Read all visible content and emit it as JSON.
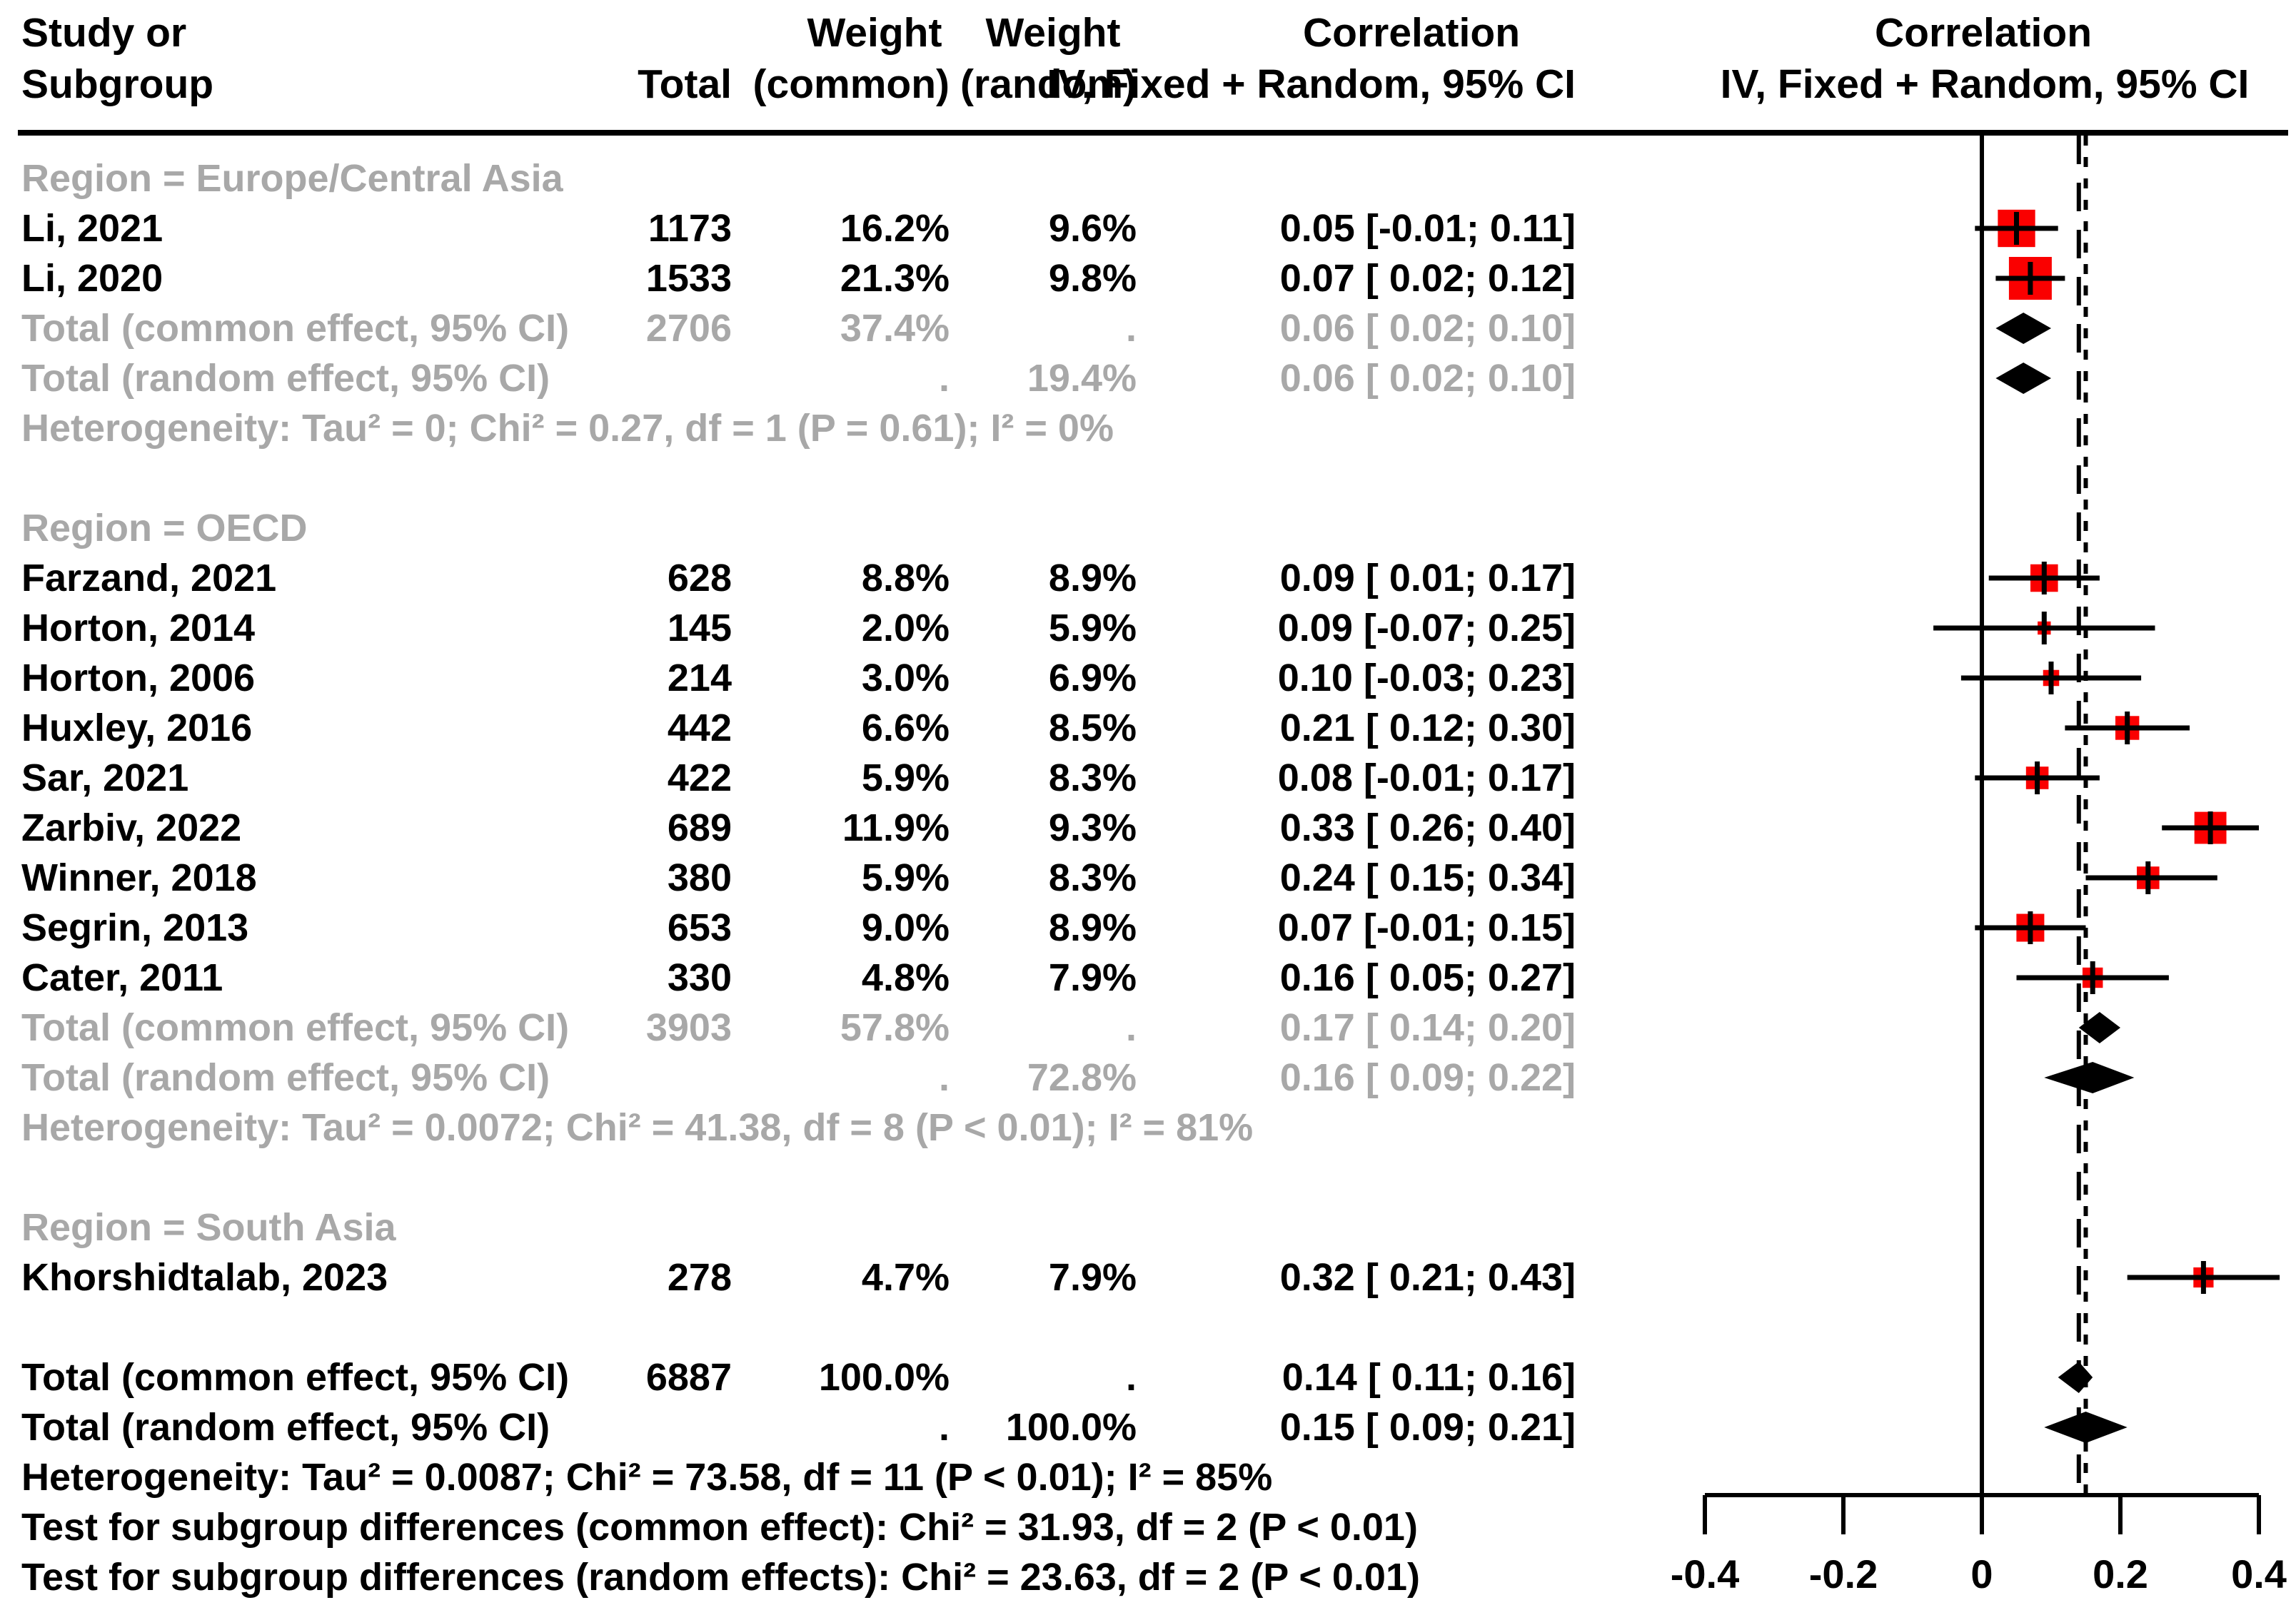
{
  "header": {
    "study_line1": "Study or",
    "study_line2": "Subgroup",
    "total": "Total",
    "weight_common_top": "Weight",
    "weight_common_bottom": "(common)",
    "weight_random_top": "Weight",
    "weight_random_bottom": "(random)",
    "ci_top": "Correlation",
    "ci_bottom": "IV, Fixed + Random, 95% CI",
    "plot_top": "Correlation",
    "plot_bottom": "IV, Fixed + Random, 95% CI"
  },
  "colors": {
    "effect_red": "#fa0000",
    "muted_gray": "#a8a8a8",
    "ink_black": "#000000"
  },
  "chart_data": {
    "type": "forest",
    "effect_measure": "Correlation",
    "x_axis": {
      "ticks": [
        -0.4,
        -0.2,
        0,
        0.2,
        0.4
      ],
      "tick_labels": [
        "-0.4",
        "-0.2",
        "0",
        "0.2",
        "0.4"
      ],
      "min": -0.45,
      "max": 0.46
    },
    "reference_lines": {
      "zero_solid": 0,
      "overall_common_dashed": 0.14,
      "overall_random_dotted": 0.15
    },
    "rows": [
      {
        "kind": "section",
        "label": "Region = Europe/Central Asia"
      },
      {
        "kind": "study",
        "label": "Li, 2021",
        "total": "1173",
        "w_common": "16.2%",
        "w_random": "9.6%",
        "ci_text": "0.05 [-0.01; 0.11]",
        "est": 0.05,
        "lo": -0.01,
        "hi": 0.11,
        "size_weight": 16.2
      },
      {
        "kind": "study",
        "label": "Li, 2020",
        "total": "1533",
        "w_common": "21.3%",
        "w_random": "9.8%",
        "ci_text": "0.07 [ 0.02; 0.12]",
        "est": 0.07,
        "lo": 0.02,
        "hi": 0.12,
        "size_weight": 21.3
      },
      {
        "kind": "subtotal",
        "label": "Total (common effect, 95% CI)",
        "total": "2706",
        "w_common": "37.4%",
        "w_random": ".",
        "ci_text": "0.06 [ 0.02; 0.10]",
        "est": 0.06,
        "lo": 0.02,
        "hi": 0.1
      },
      {
        "kind": "subtotal",
        "label": "Total (random effect, 95% CI)",
        "total": "",
        "w_common": ".",
        "w_random": "19.4%",
        "ci_text": "0.06 [ 0.02; 0.10]",
        "est": 0.06,
        "lo": 0.02,
        "hi": 0.1
      },
      {
        "kind": "het_muted",
        "label": "Heterogeneity: Tau² = 0; Chi² = 0.27, df = 1 (P = 0.61); I² = 0%"
      },
      {
        "kind": "spacer",
        "label": ""
      },
      {
        "kind": "section",
        "label": "Region = OECD"
      },
      {
        "kind": "study",
        "label": "Farzand, 2021",
        "total": "628",
        "w_common": "8.8%",
        "w_random": "8.9%",
        "ci_text": "0.09 [ 0.01; 0.17]",
        "est": 0.09,
        "lo": 0.01,
        "hi": 0.17,
        "size_weight": 8.8
      },
      {
        "kind": "study",
        "label": "Horton, 2014",
        "total": "145",
        "w_common": "2.0%",
        "w_random": "5.9%",
        "ci_text": "0.09 [-0.07; 0.25]",
        "est": 0.09,
        "lo": -0.07,
        "hi": 0.25,
        "size_weight": 2.0
      },
      {
        "kind": "study",
        "label": "Horton, 2006",
        "total": "214",
        "w_common": "3.0%",
        "w_random": "6.9%",
        "ci_text": "0.10 [-0.03; 0.23]",
        "est": 0.1,
        "lo": -0.03,
        "hi": 0.23,
        "size_weight": 3.0
      },
      {
        "kind": "study",
        "label": "Huxley, 2016",
        "total": "442",
        "w_common": "6.6%",
        "w_random": "8.5%",
        "ci_text": "0.21 [ 0.12; 0.30]",
        "est": 0.21,
        "lo": 0.12,
        "hi": 0.3,
        "size_weight": 6.6
      },
      {
        "kind": "study",
        "label": "Sar, 2021",
        "total": "422",
        "w_common": "5.9%",
        "w_random": "8.3%",
        "ci_text": "0.08 [-0.01; 0.17]",
        "est": 0.08,
        "lo": -0.01,
        "hi": 0.17,
        "size_weight": 5.9
      },
      {
        "kind": "study",
        "label": "Zarbiv, 2022",
        "total": "689",
        "w_common": "11.9%",
        "w_random": "9.3%",
        "ci_text": "0.33 [ 0.26; 0.40]",
        "est": 0.33,
        "lo": 0.26,
        "hi": 0.4,
        "size_weight": 11.9
      },
      {
        "kind": "study",
        "label": "Winner, 2018",
        "total": "380",
        "w_common": "5.9%",
        "w_random": "8.3%",
        "ci_text": "0.24 [ 0.15; 0.34]",
        "est": 0.24,
        "lo": 0.15,
        "hi": 0.34,
        "size_weight": 5.9
      },
      {
        "kind": "study",
        "label": "Segrin, 2013",
        "total": "653",
        "w_common": "9.0%",
        "w_random": "8.9%",
        "ci_text": "0.07 [-0.01; 0.15]",
        "est": 0.07,
        "lo": -0.01,
        "hi": 0.15,
        "size_weight": 9.0
      },
      {
        "kind": "study",
        "label": "Cater, 2011",
        "total": "330",
        "w_common": "4.8%",
        "w_random": "7.9%",
        "ci_text": "0.16 [ 0.05; 0.27]",
        "est": 0.16,
        "lo": 0.05,
        "hi": 0.27,
        "size_weight": 4.8
      },
      {
        "kind": "subtotal",
        "label": "Total (common effect, 95% CI)",
        "total": "3903",
        "w_common": "57.8%",
        "w_random": ".",
        "ci_text": "0.17 [ 0.14; 0.20]",
        "est": 0.17,
        "lo": 0.14,
        "hi": 0.2
      },
      {
        "kind": "subtotal",
        "label": "Total (random effect, 95% CI)",
        "total": "",
        "w_common": ".",
        "w_random": "72.8%",
        "ci_text": "0.16 [ 0.09; 0.22]",
        "est": 0.16,
        "lo": 0.09,
        "hi": 0.22
      },
      {
        "kind": "het_muted",
        "label": "Heterogeneity: Tau² = 0.0072; Chi² = 41.38, df = 8 (P < 0.01); I² = 81%"
      },
      {
        "kind": "spacer",
        "label": ""
      },
      {
        "kind": "section",
        "label": "Region = South Asia"
      },
      {
        "kind": "study",
        "label": "Khorshidtalab, 2023",
        "total": "278",
        "w_common": "4.7%",
        "w_random": "7.9%",
        "ci_text": "0.32 [ 0.21; 0.43]",
        "est": 0.32,
        "lo": 0.21,
        "hi": 0.43,
        "size_weight": 4.7
      },
      {
        "kind": "spacer",
        "label": ""
      },
      {
        "kind": "total",
        "label": "Total (common effect, 95% CI)",
        "total": "6887",
        "w_common": "100.0%",
        "w_random": ".",
        "ci_text": "0.14 [ 0.11; 0.16]",
        "est": 0.14,
        "lo": 0.11,
        "hi": 0.16
      },
      {
        "kind": "total",
        "label": "Total (random effect, 95% CI)",
        "total": "",
        "w_common": ".",
        "w_random": "100.0%",
        "ci_text": "0.15 [ 0.09; 0.21]",
        "est": 0.15,
        "lo": 0.09,
        "hi": 0.21
      },
      {
        "kind": "het",
        "label": "Heterogeneity: Tau² = 0.0087; Chi² = 73.58, df = 11 (P < 0.01); I² = 85%"
      },
      {
        "kind": "note",
        "label": "Test for subgroup differences (common effect): Chi² = 31.93, df = 2 (P < 0.01)"
      },
      {
        "kind": "note",
        "label": "Test for subgroup differences (random effects): Chi² = 23.63, df = 2 (P < 0.01)"
      }
    ]
  }
}
